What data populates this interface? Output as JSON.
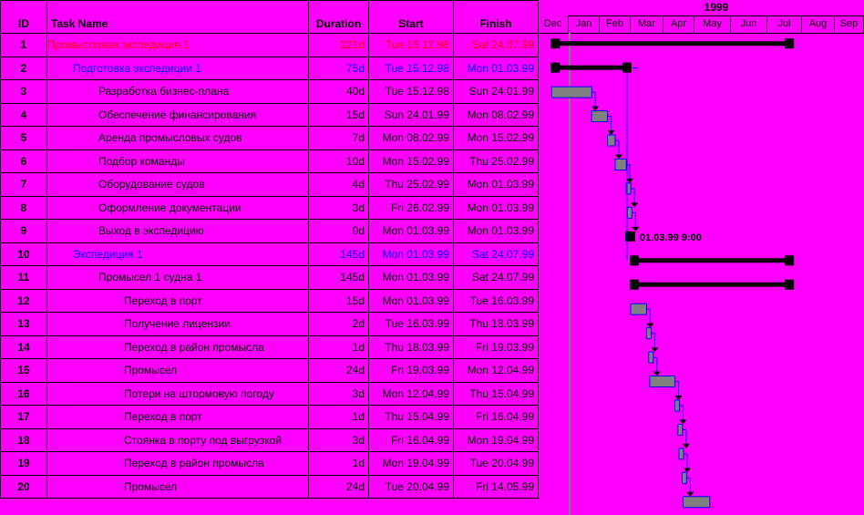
{
  "headers": {
    "id": "ID",
    "name": "Task Name",
    "duration": "Duration",
    "start": "Start",
    "finish": "Finish"
  },
  "timeline": {
    "year": "1999",
    "months": [
      "Dec",
      "Jan",
      "Feb",
      "Mar",
      "Apr",
      "May",
      "Jun",
      "Jul",
      "Aug",
      "Sep"
    ]
  },
  "milestone_label": "01.03.99 9:00",
  "colors": {
    "background": "#ff00ff",
    "summary_bar": "#000000",
    "task_bar": "#808080",
    "link": "#0000ff",
    "today_line": "#808080"
  },
  "tasks": [
    {
      "id": "1",
      "name": "Промысловая экспедиция 1",
      "duration": "221d",
      "start": "Tue 15.12.98",
      "finish": "Sat 24.07.99",
      "level": 0,
      "color": "red"
    },
    {
      "id": "2",
      "name": "Подготовка экспедиции 1",
      "duration": "75d",
      "start": "Tue 15.12.98",
      "finish": "Mon 01.03.99",
      "level": 1,
      "color": "blue"
    },
    {
      "id": "3",
      "name": "Разработка бизнес-плана",
      "duration": "40d",
      "start": "Tue 15.12.98",
      "finish": "Sun 24.01.99",
      "level": 2,
      "color": "black"
    },
    {
      "id": "4",
      "name": "Обеспечение финансирования",
      "duration": "15d",
      "start": "Sun 24.01.99",
      "finish": "Mon 08.02.99",
      "level": 2,
      "color": "black"
    },
    {
      "id": "5",
      "name": "Аренда промысловых судов",
      "duration": "7d",
      "start": "Mon 08.02.99",
      "finish": "Mon 15.02.99",
      "level": 2,
      "color": "black"
    },
    {
      "id": "6",
      "name": "Подбор команды",
      "duration": "10d",
      "start": "Mon 15.02.99",
      "finish": "Thu 25.02.99",
      "level": 2,
      "color": "black"
    },
    {
      "id": "7",
      "name": "Оборудование судов",
      "duration": "4d",
      "start": "Thu 25.02.99",
      "finish": "Mon 01.03.99",
      "level": 2,
      "color": "black"
    },
    {
      "id": "8",
      "name": "Оформление документации",
      "duration": "3d",
      "start": "Fri 26.02.99",
      "finish": "Mon 01.03.99",
      "level": 2,
      "color": "black"
    },
    {
      "id": "9",
      "name": "Выход в экспедицию",
      "duration": "0d",
      "start": "Mon 01.03.99",
      "finish": "Mon 01.03.99",
      "level": 2,
      "color": "black"
    },
    {
      "id": "10",
      "name": "Экспедиция 1",
      "duration": "145d",
      "start": "Mon 01.03.99",
      "finish": "Sat 24.07.99",
      "level": 1,
      "color": "blue"
    },
    {
      "id": "11",
      "name": "Промысел 1 судна 1",
      "duration": "145d",
      "start": "Mon 01.03.99",
      "finish": "Sat 24.07.99",
      "level": 2,
      "color": "black"
    },
    {
      "id": "12",
      "name": "Переход в порт",
      "duration": "15d",
      "start": "Mon 01.03.99",
      "finish": "Tue 16.03.99",
      "level": 3,
      "color": "black"
    },
    {
      "id": "13",
      "name": "Получение лицензии",
      "duration": "2d",
      "start": "Tue 16.03.99",
      "finish": "Thu 18.03.99",
      "level": 3,
      "color": "black"
    },
    {
      "id": "14",
      "name": "Переход в район промысла",
      "duration": "1d",
      "start": "Thu 18.03.99",
      "finish": "Fri 19.03.99",
      "level": 3,
      "color": "black"
    },
    {
      "id": "15",
      "name": "Промысел",
      "duration": "24d",
      "start": "Fri 19.03.99",
      "finish": "Mon 12.04.99",
      "level": 3,
      "color": "black"
    },
    {
      "id": "16",
      "name": "Потери на штормовую погоду",
      "duration": "3d",
      "start": "Mon 12.04.99",
      "finish": "Thu 15.04.99",
      "level": 3,
      "color": "black"
    },
    {
      "id": "17",
      "name": "Переход в порт",
      "duration": "1d",
      "start": "Thu 15.04.99",
      "finish": "Fri 16.04.99",
      "level": 3,
      "color": "black"
    },
    {
      "id": "18",
      "name": "Стоянка в порту под выгрузкой",
      "duration": "3d",
      "start": "Fri 16.04.99",
      "finish": "Mon 19.04.99",
      "level": 3,
      "color": "black"
    },
    {
      "id": "19",
      "name": "Переход в район промысла",
      "duration": "1d",
      "start": "Mon 19.04.99",
      "finish": "Tue 20.04.99",
      "level": 3,
      "color": "black"
    },
    {
      "id": "20",
      "name": "Промысел",
      "duration": "24d",
      "start": "Tue 20.04.99",
      "finish": "Fri 14.05.99",
      "level": 3,
      "color": "black"
    }
  ]
}
